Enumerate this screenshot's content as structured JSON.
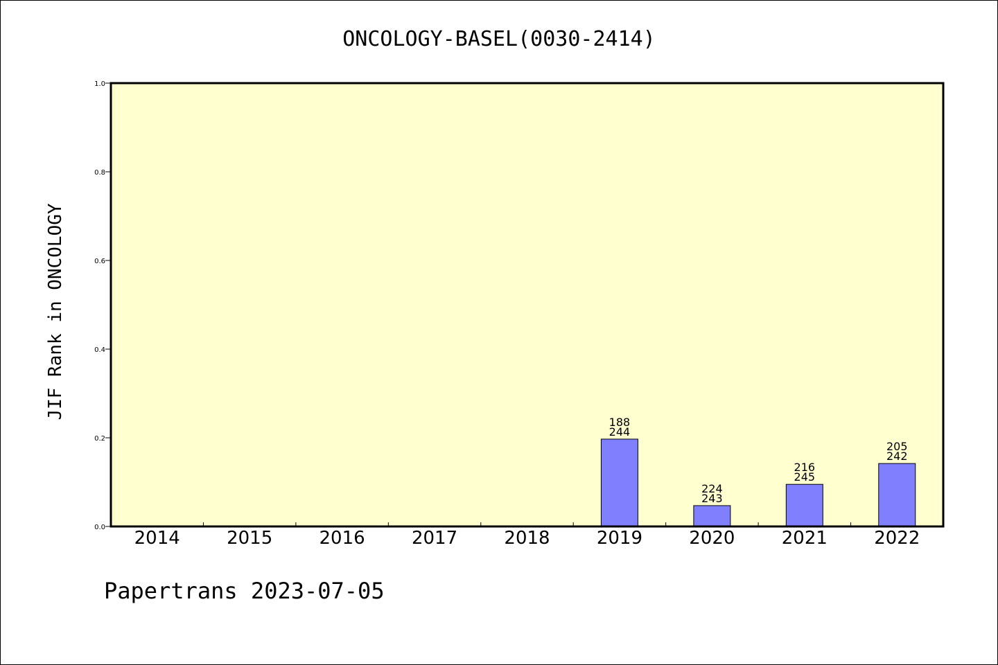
{
  "chart_data": {
    "type": "bar",
    "title": "ONCOLOGY-BASEL(0030-2414)",
    "xlabel": "",
    "ylabel": "JIF Rank in ONCOLOGY",
    "ylim": [
      0,
      1.0
    ],
    "yticks": [
      "0.0",
      "0.2",
      "0.4",
      "0.6",
      "0.8",
      "1.0"
    ],
    "categories": [
      "2014",
      "2015",
      "2016",
      "2017",
      "2018",
      "2019",
      "2020",
      "2021",
      "2022"
    ],
    "values": [
      null,
      null,
      null,
      null,
      null,
      0.197,
      0.047,
      0.095,
      0.142
    ],
    "bar_labels": [
      null,
      null,
      null,
      null,
      null,
      {
        "rank": "188",
        "total": "244"
      },
      {
        "rank": "224",
        "total": "243"
      },
      {
        "rank": "216",
        "total": "245"
      },
      {
        "rank": "205",
        "total": "242"
      }
    ],
    "grid": false,
    "colors": {
      "plot_background": "#FFFFD0",
      "bar_fill": "#8080FF",
      "bar_stroke": "#000000"
    }
  },
  "footer": {
    "text": "Papertrans 2023-07-05"
  }
}
